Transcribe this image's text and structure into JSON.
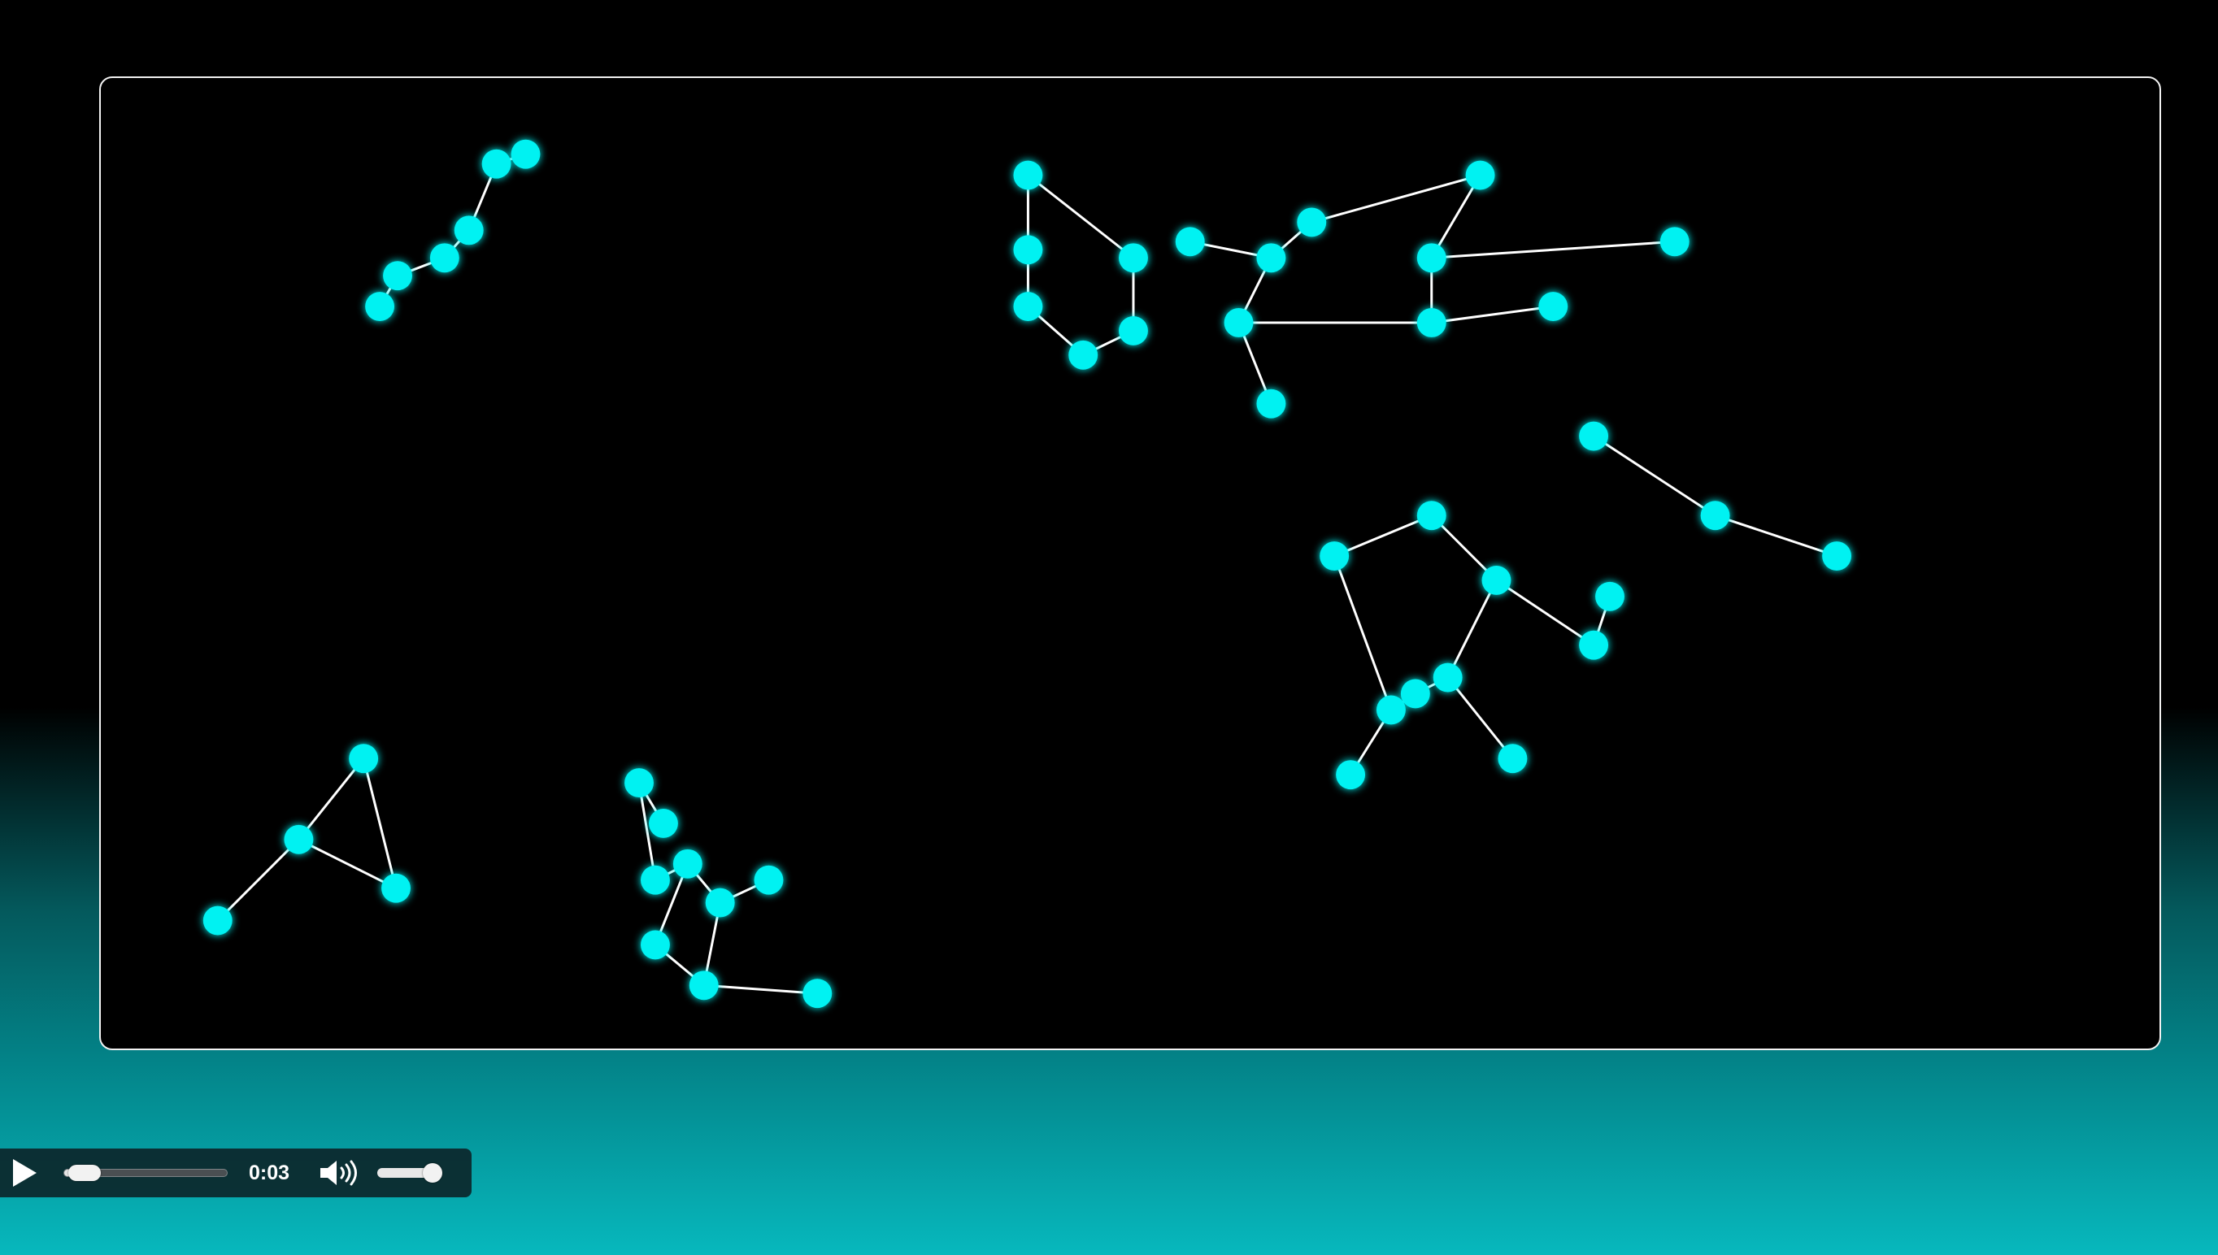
{
  "player": {
    "time": "0:03",
    "progress": 0.03,
    "volume": 1.0,
    "play_icon": "play-icon",
    "volume_icon": "speaker-volume-icon"
  },
  "colors": {
    "star": "#00f2f2",
    "line": "#ffffff",
    "frame_border": "#f2f2f2"
  }
}
